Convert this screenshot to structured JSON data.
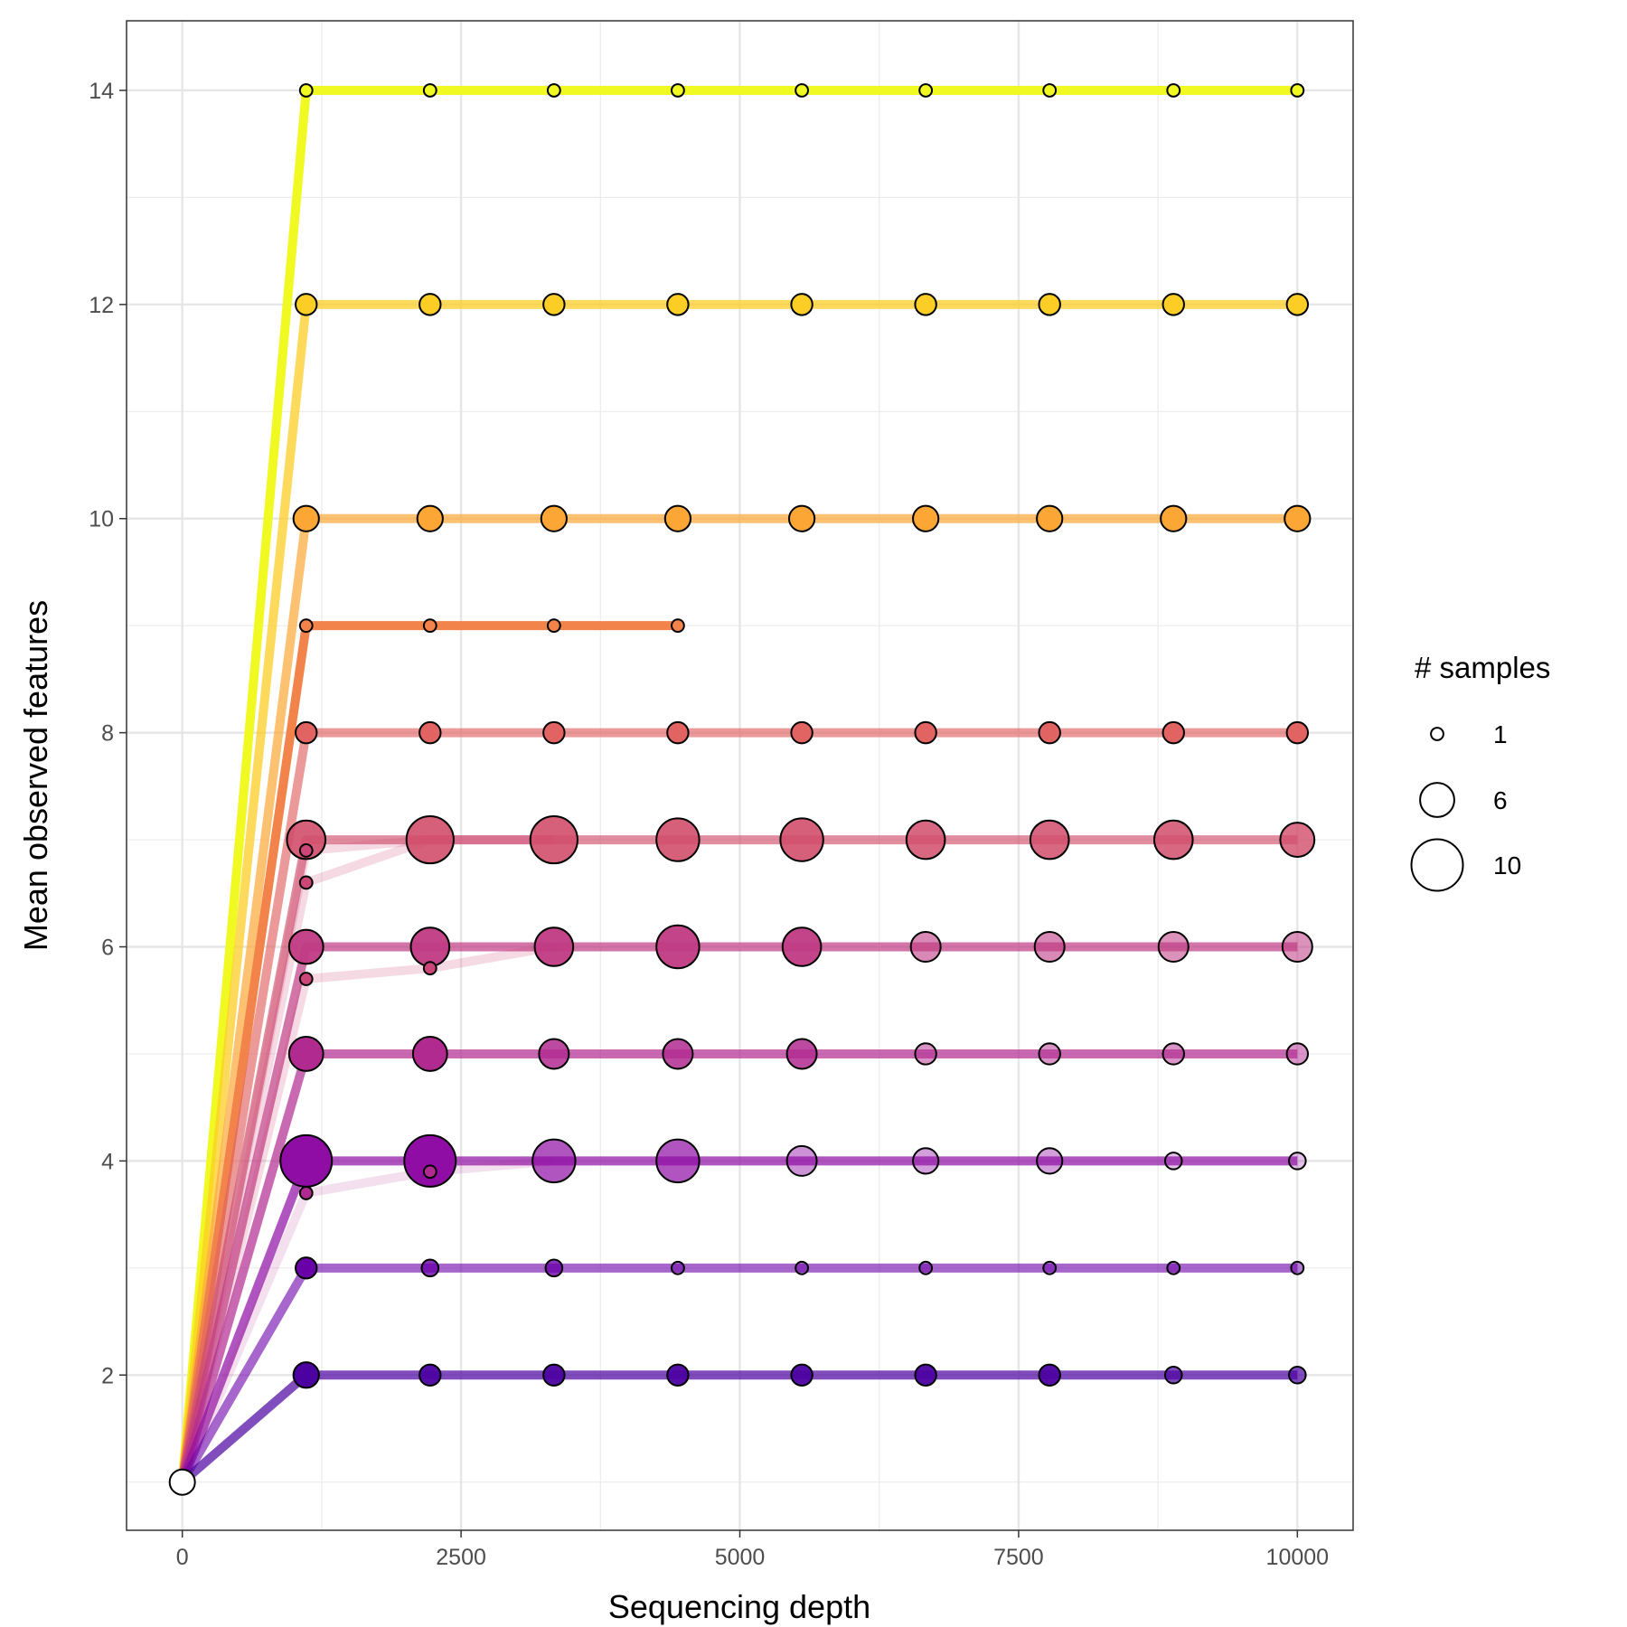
{
  "chart_data": {
    "type": "line",
    "title": "",
    "xlabel": "Sequencing depth",
    "ylabel": "Mean observed features",
    "xlim": [
      -500,
      10500
    ],
    "ylim": [
      0.55,
      14.65
    ],
    "x_ticks": [
      0,
      2500,
      5000,
      7500,
      10000
    ],
    "x_tick_labels": [
      "0",
      "2500",
      "5000",
      "7500",
      "10000"
    ],
    "y_ticks": [
      2,
      4,
      6,
      8,
      10,
      12,
      14
    ],
    "y_tick_labels": [
      "2",
      "4",
      "6",
      "8",
      "10",
      "12",
      "14"
    ],
    "grid": true,
    "legend": {
      "title": "# samples",
      "placement": "right",
      "entries": [
        {
          "label": "1",
          "value": 1
        },
        {
          "label": "6",
          "value": 6
        },
        {
          "label": "10",
          "value": 10
        }
      ]
    },
    "origin": {
      "x": 0,
      "y": 1,
      "color": "#ffffff"
    },
    "depths": [
      1111,
      2222,
      3333,
      4444,
      5556,
      6667,
      7778,
      8889,
      10000
    ],
    "series": [
      {
        "color": "#f0f921",
        "line_alpha": 1.0,
        "y": [
          14,
          14,
          14,
          14,
          14,
          14,
          14,
          14,
          14
        ],
        "n": [
          1,
          1,
          1,
          1,
          1,
          1,
          1,
          1,
          1
        ],
        "a": [
          1,
          1,
          1,
          1,
          1,
          1,
          1,
          1,
          1
        ]
      },
      {
        "color": "#fcce25",
        "line_alpha": 0.75,
        "y": [
          12,
          12,
          12,
          12,
          12,
          12,
          12,
          12,
          12
        ],
        "n": [
          3,
          3,
          3,
          3,
          3,
          3,
          3,
          3,
          3
        ],
        "a": [
          1,
          1,
          1,
          1,
          1,
          1,
          1,
          1,
          1
        ]
      },
      {
        "color": "#fca636",
        "line_alpha": 0.7,
        "y": [
          10,
          10,
          10,
          10,
          10,
          10,
          10,
          10,
          10
        ],
        "n": [
          4,
          4,
          4,
          4,
          4,
          4,
          4,
          4,
          4
        ],
        "a": [
          1,
          1,
          1,
          1,
          1,
          1,
          1,
          1,
          1
        ]
      },
      {
        "color": "#f2844b",
        "line_alpha": 1.0,
        "y": [
          9,
          9,
          9,
          9
        ],
        "n": [
          1,
          1,
          1,
          1
        ],
        "a": [
          1,
          1,
          1,
          1
        ]
      },
      {
        "color": "#e16462",
        "line_alpha": 0.65,
        "y": [
          8,
          8,
          8,
          8,
          8,
          8,
          8,
          8,
          8
        ],
        "n": [
          3,
          3,
          3,
          3,
          3,
          3,
          3,
          3,
          3
        ],
        "a": [
          1,
          1,
          1,
          1,
          1,
          1,
          1,
          1,
          1
        ]
      },
      {
        "color": "#d14e6c",
        "line_alpha": 0.65,
        "y": [
          7,
          7,
          7,
          7,
          7,
          7,
          7,
          7,
          7
        ],
        "n": [
          7,
          9,
          9,
          8,
          8,
          7,
          7,
          7,
          6
        ],
        "a": [
          0.9,
          0.9,
          0.9,
          0.9,
          0.9,
          0.85,
          0.85,
          0.85,
          0.8
        ]
      },
      {
        "color": "#cc4778",
        "line_alpha": 0.2,
        "y": [
          6.9,
          7,
          7
        ],
        "n": [
          1,
          0,
          0
        ],
        "a": [
          1,
          0,
          0
        ]
      },
      {
        "color": "#cc4778",
        "line_alpha": 0.2,
        "y": [
          6.6,
          7,
          7
        ],
        "n": [
          1,
          0,
          0
        ],
        "a": [
          1,
          0,
          0
        ]
      },
      {
        "color": "#c03a83",
        "line_alpha": 0.7,
        "y": [
          6,
          6,
          6,
          6,
          6,
          6,
          6,
          6,
          6
        ],
        "n": [
          6,
          7,
          7,
          8,
          7,
          5,
          5,
          5,
          5
        ],
        "a": [
          0.95,
          0.95,
          0.95,
          0.95,
          0.95,
          0.6,
          0.6,
          0.55,
          0.55
        ]
      },
      {
        "color": "#cc4778",
        "line_alpha": 0.2,
        "y": [
          5.7,
          5.8,
          6
        ],
        "n": [
          1,
          1,
          0
        ],
        "a": [
          1,
          1,
          0
        ]
      },
      {
        "color": "#b12a90",
        "line_alpha": 0.7,
        "y": [
          5,
          5,
          5,
          5,
          5,
          5,
          5,
          5,
          5
        ],
        "n": [
          6,
          6,
          5,
          5,
          5,
          3,
          3,
          3,
          3
        ],
        "a": [
          1,
          1,
          0.85,
          0.85,
          0.85,
          0.5,
          0.5,
          0.5,
          0.5
        ]
      },
      {
        "color": "#8f0da4",
        "line_alpha": 0.7,
        "y": [
          4,
          4,
          4,
          4,
          4,
          4,
          4,
          4,
          4
        ],
        "n": [
          10,
          10,
          8,
          8,
          5,
          4,
          4,
          2,
          2
        ],
        "a": [
          1,
          1,
          0.7,
          0.7,
          0.45,
          0.4,
          0.4,
          0.25,
          0.25
        ]
      },
      {
        "color": "#b12a90",
        "line_alpha": 0.15,
        "y": [
          3.7,
          3.9,
          4
        ],
        "n": [
          1,
          1,
          0
        ],
        "a": [
          1,
          1,
          0
        ]
      },
      {
        "color": "#6a00a8",
        "line_alpha": 0.6,
        "y": [
          3,
          3,
          3,
          3,
          3,
          3,
          3,
          3,
          3
        ],
        "n": [
          3,
          2,
          2,
          1,
          1,
          1,
          1,
          1,
          1
        ],
        "a": [
          1,
          0.8,
          0.8,
          0.5,
          0.5,
          0.5,
          0.5,
          0.5,
          0.5
        ]
      },
      {
        "color": "#4c02a1",
        "line_alpha": 0.7,
        "y": [
          2,
          2,
          2,
          2,
          2,
          2,
          2,
          2,
          2
        ],
        "n": [
          4,
          3,
          3,
          3,
          3,
          3,
          3,
          2,
          2
        ],
        "a": [
          1,
          0.95,
          0.95,
          0.95,
          0.95,
          0.95,
          0.95,
          0.7,
          0.7
        ]
      }
    ]
  }
}
